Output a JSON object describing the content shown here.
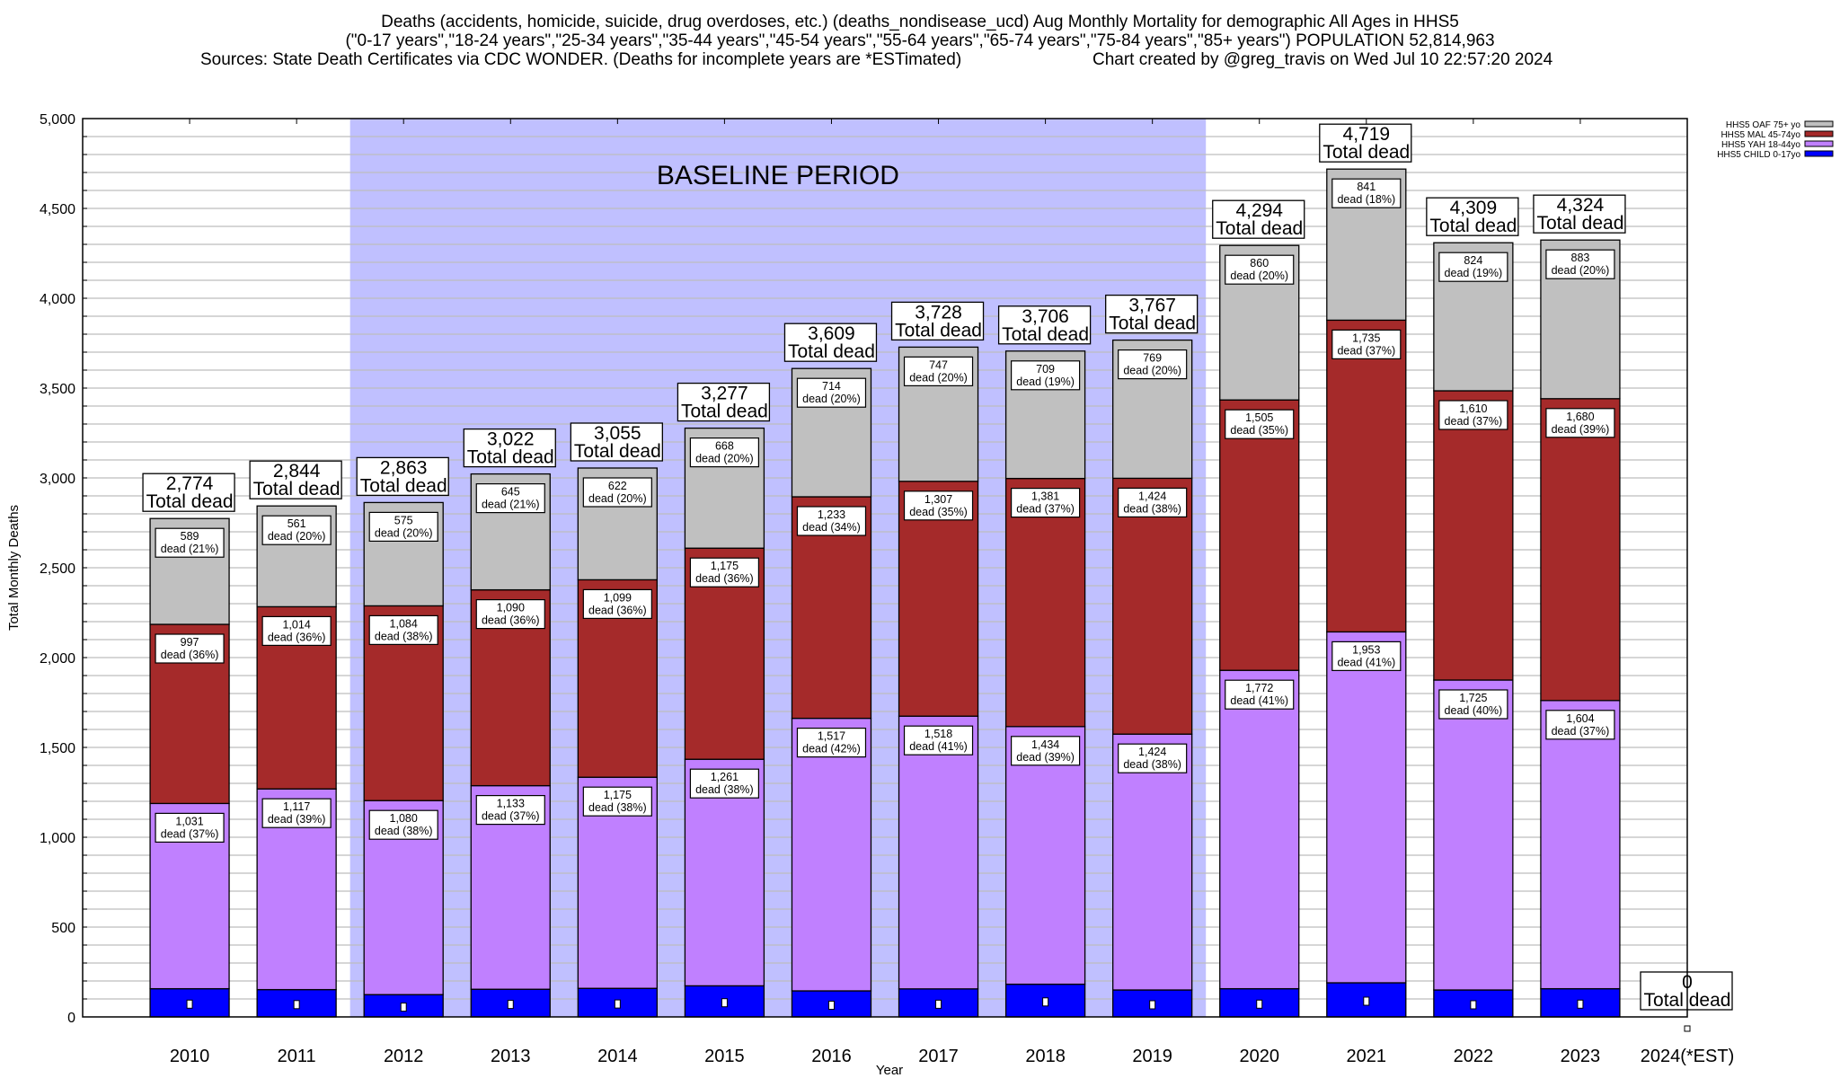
{
  "chart_data": {
    "type": "bar",
    "stacked": true,
    "title_lines": [
      "Deaths (accidents, homicide, suicide, drug overdoses, etc.) (deaths_nondisease_ucd) Aug Monthly Mortality for demographic All Ages in HHS5",
      "(\"0-17 years\",\"18-24 years\",\"25-34 years\",\"35-44 years\",\"45-54 years\",\"55-64 years\",\"65-74 years\",\"75-84 years\",\"85+ years\") POPULATION 52,814,963",
      "Sources: State Death Certificates via CDC WONDER. (Deaths for incomplete years are *ESTimated)",
      "Chart created by @greg_travis on Wed Jul 10 22:57:20 2024"
    ],
    "xlabel": "Year",
    "ylabel": "Total Monthly Deaths",
    "ylim": [
      0,
      5000
    ],
    "yticks": [
      0,
      500,
      1000,
      1500,
      2000,
      2500,
      3000,
      3500,
      4000,
      4500,
      5000
    ],
    "grid": true,
    "legend_position": "top-right",
    "categories": [
      "2010",
      "2011",
      "2012",
      "2013",
      "2014",
      "2015",
      "2016",
      "2017",
      "2018",
      "2019",
      "2020",
      "2021",
      "2022",
      "2023",
      "2024(*EST)"
    ],
    "annotation": {
      "text": "BASELINE PERIOD",
      "from": "2012",
      "to": "2019",
      "color": "#c0c0ff"
    },
    "total_word": "Total dead",
    "dead_word": "dead",
    "totals": [
      2774,
      2844,
      2863,
      3022,
      3055,
      3277,
      3609,
      3728,
      3706,
      3767,
      4294,
      4719,
      4309,
      4324,
      0
    ],
    "series": [
      {
        "name": "HHS5 CHILD 0-17yo",
        "color": "#0000ff",
        "values": [
          157,
          152,
          124,
          154,
          159,
          173,
          145,
          156,
          182,
          150,
          157,
          190,
          150,
          157,
          0
        ],
        "percents": null
      },
      {
        "name": "HHS5 YAH 18-44yo",
        "color": "#c080ff",
        "values": [
          1031,
          1117,
          1080,
          1133,
          1175,
          1261,
          1517,
          1518,
          1434,
          1424,
          1772,
          1953,
          1725,
          1604,
          0
        ],
        "percents": [
          37,
          39,
          38,
          37,
          38,
          38,
          42,
          41,
          39,
          38,
          41,
          41,
          40,
          37,
          null
        ]
      },
      {
        "name": "HHS5 MAL 45-74yo",
        "color": "#a52a2a",
        "values": [
          997,
          1014,
          1084,
          1090,
          1099,
          1175,
          1233,
          1307,
          1381,
          1424,
          1505,
          1735,
          1610,
          1680,
          0
        ],
        "percents": [
          36,
          36,
          38,
          36,
          36,
          36,
          34,
          35,
          37,
          38,
          35,
          37,
          37,
          39,
          null
        ]
      },
      {
        "name": "HHS5 OAF 75+ yo",
        "color": "#c0c0c0",
        "values": [
          589,
          561,
          575,
          645,
          622,
          668,
          714,
          747,
          709,
          769,
          860,
          841,
          824,
          883,
          0
        ],
        "percents": [
          21,
          20,
          20,
          21,
          20,
          20,
          20,
          20,
          19,
          20,
          20,
          18,
          19,
          20,
          null
        ]
      }
    ]
  }
}
